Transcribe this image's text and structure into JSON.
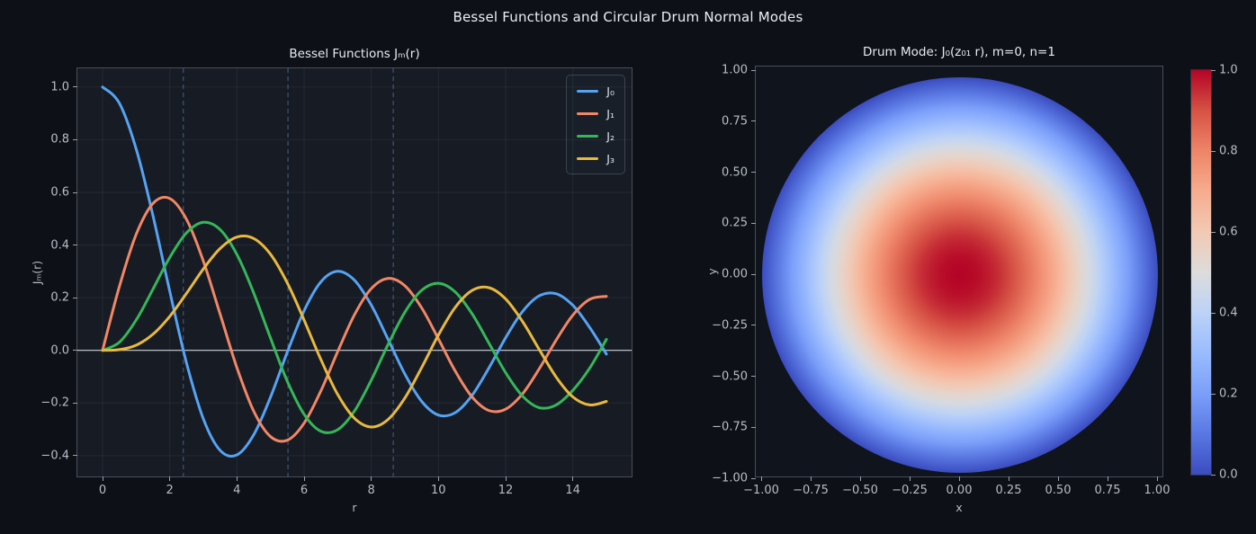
{
  "figure": {
    "title": "Bessel Functions and Circular Drum Normal Modes",
    "colors": {
      "background": "#0d1017",
      "bessel_axes_background": "#171b24",
      "drum_axes_background": "#10141c",
      "grid": "rgba(195,210,235,0.07)",
      "zero_line": "#ccd1d8",
      "vline": "rgba(105,158,212,0.55)"
    }
  },
  "chart_data": [
    {
      "type": "line",
      "title": "Bessel Functions Jₘ(r)",
      "xlabel": "r",
      "ylabel": "Jₘ(r)",
      "xlim": [
        -0.75,
        15.75
      ],
      "ylim": [
        -0.479,
        1.071
      ],
      "grid": true,
      "legend_position": "upper right",
      "xticks": [
        0,
        2,
        4,
        6,
        8,
        10,
        12,
        14
      ],
      "xtick_labels": [
        "0",
        "2",
        "4",
        "6",
        "8",
        "10",
        "12",
        "14"
      ],
      "yticks": [
        1.0,
        0.8,
        0.6,
        0.4,
        0.2,
        0.0,
        -0.2,
        -0.4
      ],
      "ytick_labels": [
        "1.0",
        "0.8",
        "0.6",
        "0.4",
        "0.2",
        "0.0",
        "−0.2",
        "−0.4"
      ],
      "zero_line_y": 0,
      "j0_zero_vlines": [
        2.405,
        5.52,
        8.654
      ],
      "x": [
        0,
        0.5,
        1,
        1.5,
        2,
        2.5,
        3,
        3.5,
        4,
        4.5,
        5,
        5.5,
        6,
        6.5,
        7,
        7.5,
        8,
        8.5,
        9,
        9.5,
        10,
        10.5,
        11,
        11.5,
        12,
        12.5,
        13,
        13.5,
        14,
        14.5,
        15
      ],
      "series": [
        {
          "name": "J₀",
          "color": "#55a3f3",
          "values": [
            1.0,
            0.9385,
            0.7652,
            0.5118,
            0.2239,
            -0.0484,
            -0.2601,
            -0.3801,
            -0.3971,
            -0.3205,
            -0.1776,
            -0.0068,
            0.1506,
            0.2601,
            0.3001,
            0.2663,
            0.1717,
            0.0419,
            -0.0903,
            -0.1939,
            -0.2459,
            -0.2366,
            -0.1712,
            -0.0677,
            0.0477,
            0.1469,
            0.2069,
            0.215,
            0.1711,
            0.0875,
            -0.0142
          ]
        },
        {
          "name": "J₁",
          "color": "#f28766",
          "values": [
            0.0,
            0.2423,
            0.4401,
            0.5579,
            0.5767,
            0.4971,
            0.3391,
            0.1374,
            -0.066,
            -0.2311,
            -0.3276,
            -0.3414,
            -0.2767,
            -0.1538,
            -0.0047,
            0.1352,
            0.2346,
            0.2731,
            0.2453,
            0.1613,
            0.0435,
            -0.0789,
            -0.1768,
            -0.2284,
            -0.2234,
            -0.1655,
            -0.0703,
            0.038,
            0.1334,
            0.1934,
            0.2051
          ]
        },
        {
          "name": "J₂",
          "color": "#35b759",
          "values": [
            0.0,
            0.0306,
            0.1149,
            0.2321,
            0.3528,
            0.4461,
            0.4861,
            0.4586,
            0.3641,
            0.2178,
            0.0466,
            -0.1173,
            -0.2429,
            -0.3074,
            -0.3014,
            -0.2303,
            -0.113,
            0.0223,
            0.1448,
            0.2279,
            0.2546,
            0.2216,
            0.139,
            0.0279,
            -0.0849,
            -0.1734,
            -0.2177,
            -0.2078,
            -0.152,
            -0.0682,
            0.0416
          ]
        },
        {
          "name": "J₃",
          "color": "#e8b93f",
          "values": [
            0.0,
            0.0026,
            0.0196,
            0.061,
            0.1289,
            0.2166,
            0.3091,
            0.3868,
            0.4302,
            0.4247,
            0.3648,
            0.2561,
            0.1148,
            -0.0353,
            -0.1676,
            -0.258,
            -0.2911,
            -0.2626,
            -0.1809,
            -0.0653,
            0.0584,
            0.1633,
            0.2273,
            0.2381,
            0.1951,
            0.11,
            0.0033,
            -0.1008,
            -0.1768,
            -0.2074,
            -0.194
          ]
        }
      ]
    },
    {
      "type": "heatmap",
      "title": "Drum Mode: J₀(z₀₁ r), m=0, n=1",
      "xlabel": "x",
      "ylabel": "y",
      "xlim": [
        -1,
        1
      ],
      "ylim": [
        -1,
        1
      ],
      "xticks": [
        -1,
        -0.75,
        -0.5,
        -0.25,
        0,
        0.25,
        0.5,
        0.75,
        1
      ],
      "xtick_labels": [
        "−1.00",
        "−0.75",
        "−0.50",
        "−0.25",
        "0.00",
        "0.25",
        "0.50",
        "0.75",
        "1.00"
      ],
      "yticks": [
        1,
        0.75,
        0.5,
        0.25,
        0,
        -0.25,
        -0.5,
        -0.75,
        -1
      ],
      "ytick_labels": [
        "1.00",
        "0.75",
        "0.50",
        "0.25",
        "0.00",
        "−0.25",
        "−0.50",
        "−0.75",
        "−1.00"
      ],
      "colormap": "coolwarm",
      "colormap_stops": [
        {
          "t": 0.0,
          "color": "#3b4cc0"
        },
        {
          "t": 0.1,
          "color": "#5977e3"
        },
        {
          "t": 0.2,
          "color": "#7b9ff9"
        },
        {
          "t": 0.3,
          "color": "#9abbff"
        },
        {
          "t": 0.4,
          "color": "#bcd2f7"
        },
        {
          "t": 0.5,
          "color": "#dddcdc"
        },
        {
          "t": 0.6,
          "color": "#f2c9b4"
        },
        {
          "t": 0.7,
          "color": "#f7ac8e"
        },
        {
          "t": 0.8,
          "color": "#ee8568"
        },
        {
          "t": 0.9,
          "color": "#d65244"
        },
        {
          "t": 1.0,
          "color": "#b40426"
        }
      ],
      "radial_profile": [
        {
          "radius": 0.0,
          "value": 1.0
        },
        {
          "radius": 0.05,
          "value": 0.996
        },
        {
          "radius": 0.1,
          "value": 0.986
        },
        {
          "radius": 0.15,
          "value": 0.968
        },
        {
          "radius": 0.2,
          "value": 0.943
        },
        {
          "radius": 0.25,
          "value": 0.911
        },
        {
          "radius": 0.3,
          "value": 0.873
        },
        {
          "radius": 0.35,
          "value": 0.829
        },
        {
          "radius": 0.4,
          "value": 0.781
        },
        {
          "radius": 0.45,
          "value": 0.728
        },
        {
          "radius": 0.5,
          "value": 0.67
        },
        {
          "radius": 0.55,
          "value": 0.608
        },
        {
          "radius": 0.6,
          "value": 0.544
        },
        {
          "radius": 0.65,
          "value": 0.476
        },
        {
          "radius": 0.7,
          "value": 0.407
        },
        {
          "radius": 0.75,
          "value": 0.338
        },
        {
          "radius": 0.8,
          "value": 0.268
        },
        {
          "radius": 0.85,
          "value": 0.199
        },
        {
          "radius": 0.9,
          "value": 0.13
        },
        {
          "radius": 0.95,
          "value": 0.064
        },
        {
          "radius": 1.0,
          "value": 0.0
        }
      ],
      "colorbar": {
        "ticks": [
          1.0,
          0.8,
          0.6,
          0.4,
          0.2,
          0.0
        ],
        "tick_labels": [
          "1.0",
          "0.8",
          "0.6",
          "0.4",
          "0.2",
          "0.0"
        ],
        "range": [
          0,
          1
        ]
      }
    }
  ]
}
